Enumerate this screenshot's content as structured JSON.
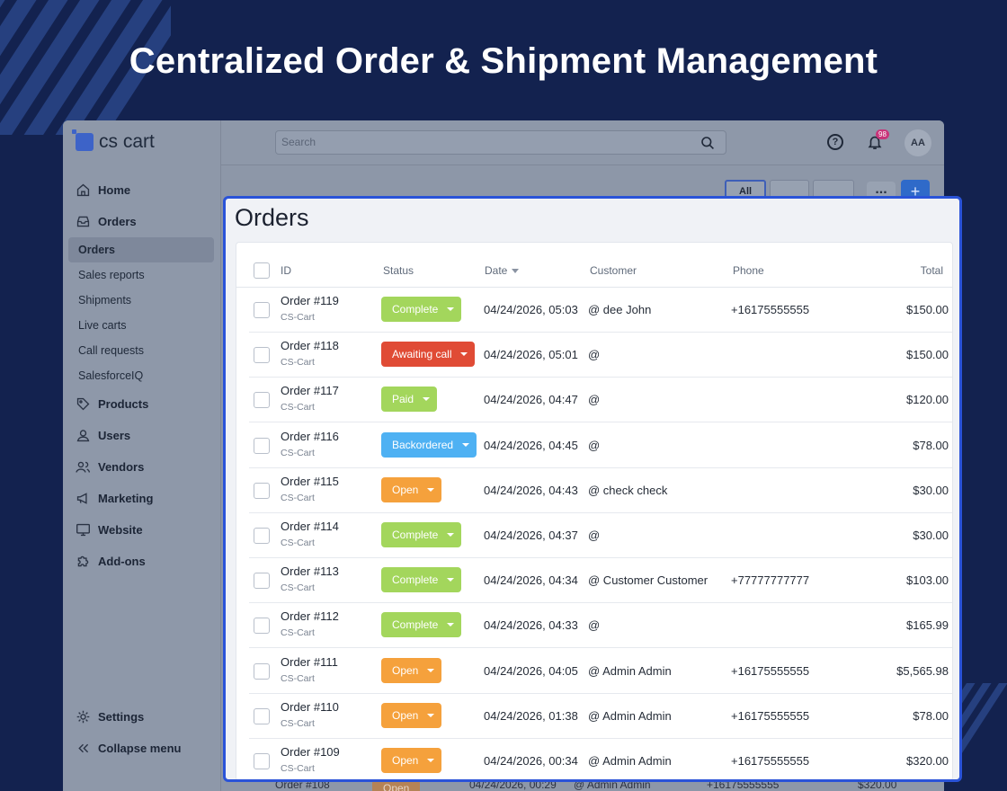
{
  "hero": {
    "title": "Centralized Order & Shipment Management"
  },
  "app": {
    "logo": "cs cart",
    "search_placeholder": "Search",
    "help_symbol": "?",
    "notifications_count": "98",
    "avatar": "AA"
  },
  "sidebar": {
    "home": "Home",
    "orders": "Orders",
    "orders_sub": [
      "Orders",
      "Sales reports",
      "Shipments",
      "Live carts",
      "Call requests",
      "SalesforceIQ"
    ],
    "products": "Products",
    "users": "Users",
    "vendors": "Vendors",
    "marketing": "Marketing",
    "website": "Website",
    "addons": "Add-ons",
    "settings": "Settings",
    "collapse": "Collapse menu"
  },
  "background_toolbar": {
    "tab_all": "All",
    "more": "...",
    "add": "+"
  },
  "panel": {
    "title": "Orders",
    "columns": {
      "id": "ID",
      "status": "Status",
      "date": "Date",
      "customer": "Customer",
      "phone": "Phone",
      "total": "Total"
    }
  },
  "status_colors": {
    "Complete": "#a3d65c",
    "Awaiting call": "#e04b35",
    "Paid": "#a3d65c",
    "Backordered": "#4eb1f3",
    "Open": "#f5a13c"
  },
  "orders": [
    {
      "id": "Order #119",
      "store": "CS-Cart",
      "status": "Complete",
      "date": "04/24/2026, 05:03",
      "customer": "@ dee John",
      "phone": "+16175555555",
      "total": "$150.00"
    },
    {
      "id": "Order #118",
      "store": "CS-Cart",
      "status": "Awaiting call",
      "date": "04/24/2026, 05:01",
      "customer": "@",
      "phone": "",
      "total": "$150.00"
    },
    {
      "id": "Order #117",
      "store": "CS-Cart",
      "status": "Paid",
      "date": "04/24/2026, 04:47",
      "customer": "@",
      "phone": "",
      "total": "$120.00"
    },
    {
      "id": "Order #116",
      "store": "CS-Cart",
      "status": "Backordered",
      "date": "04/24/2026, 04:45",
      "customer": "@",
      "phone": "",
      "total": "$78.00"
    },
    {
      "id": "Order #115",
      "store": "CS-Cart",
      "status": "Open",
      "date": "04/24/2026, 04:43",
      "customer": "@ check check",
      "phone": "",
      "total": "$30.00"
    },
    {
      "id": "Order #114",
      "store": "CS-Cart",
      "status": "Complete",
      "date": "04/24/2026, 04:37",
      "customer": "@",
      "phone": "",
      "total": "$30.00"
    },
    {
      "id": "Order #113",
      "store": "CS-Cart",
      "status": "Complete",
      "date": "04/24/2026, 04:34",
      "customer": "@ Customer Customer",
      "phone": "+77777777777",
      "total": "$103.00"
    },
    {
      "id": "Order #112",
      "store": "CS-Cart",
      "status": "Complete",
      "date": "04/24/2026, 04:33",
      "customer": "@",
      "phone": "",
      "total": "$165.99"
    },
    {
      "id": "Order #111",
      "store": "CS-Cart",
      "status": "Open",
      "date": "04/24/2026, 04:05",
      "customer": "@ Admin Admin",
      "phone": "+16175555555",
      "total": "$5,565.98"
    },
    {
      "id": "Order #110",
      "store": "CS-Cart",
      "status": "Open",
      "date": "04/24/2026, 01:38",
      "customer": "@ Admin Admin",
      "phone": "+16175555555",
      "total": "$78.00"
    },
    {
      "id": "Order #109",
      "store": "CS-Cart",
      "status": "Open",
      "date": "04/24/2026, 00:34",
      "customer": "@ Admin Admin",
      "phone": "+16175555555",
      "total": "$320.00"
    }
  ],
  "background_row": {
    "id": "Order #108",
    "status": "Open",
    "date": "04/24/2026, 00:29",
    "customer": "@ Admin Admin",
    "phone": "+16175555555",
    "total": "$320.00"
  }
}
